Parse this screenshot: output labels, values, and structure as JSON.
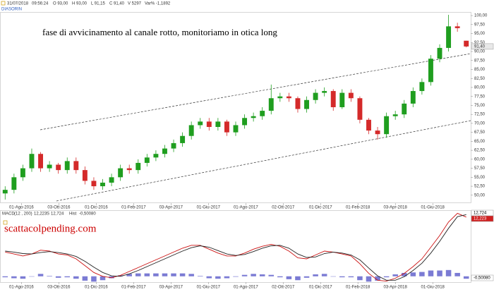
{
  "header": {
    "date": "31/07/2018",
    "time": "09:56:24",
    "open": "O 93,00",
    "high": "H 93,00",
    "low": "L 91,15",
    "close": "C 91,40",
    "volume": "V 5297",
    "change": "Var% -1,1892",
    "symbol": "DIASORIN"
  },
  "annotation": "fase di avvicinamento al canale rotto, monitoriamo in otica long",
  "watermark": "scattacolpending.com",
  "chart_data": [
    {
      "type": "candlestick",
      "up_color": "#1f9e1f",
      "down_color": "#d42a2a",
      "last_label": "91,40",
      "ylim": [
        47.8,
        100.8
      ],
      "yticks": [
        {
          "value": 50,
          "label": "50,00"
        },
        {
          "value": 52.5,
          "label": "52,50"
        },
        {
          "value": 55,
          "label": "55,00"
        },
        {
          "value": 57.5,
          "label": "57,50"
        },
        {
          "value": 60,
          "label": "60,00"
        },
        {
          "value": 62.5,
          "label": "62,50"
        },
        {
          "value": 65,
          "label": "65,00"
        },
        {
          "value": 67.5,
          "label": "67,50"
        },
        {
          "value": 70,
          "label": "70,00"
        },
        {
          "value": 72.5,
          "label": "72,50"
        },
        {
          "value": 75,
          "label": "75,00"
        },
        {
          "value": 77.5,
          "label": "77,50"
        },
        {
          "value": 80,
          "label": "80,00"
        },
        {
          "value": 82.5,
          "label": "82,50"
        },
        {
          "value": 85,
          "label": "85,00"
        },
        {
          "value": 87.5,
          "label": "87,50"
        },
        {
          "value": 90,
          "label": "90,00"
        },
        {
          "value": 92.5,
          "label": "92,50"
        },
        {
          "value": 95,
          "label": "95,00"
        },
        {
          "value": 97.5,
          "label": "97,50"
        },
        {
          "value": 100,
          "label": "100,00"
        }
      ],
      "xlim": [
        -0.5,
        52.5
      ],
      "xticks": [
        {
          "value": 1.84,
          "label": "01-Ago-2016"
        },
        {
          "value": 6.06,
          "label": "03-Ott-2016"
        },
        {
          "value": 10.27,
          "label": "01-Dic-2016"
        },
        {
          "value": 14.49,
          "label": "01-Feb-2017"
        },
        {
          "value": 18.7,
          "label": "03-Apr-2017"
        },
        {
          "value": 22.92,
          "label": "01-Giu-2017"
        },
        {
          "value": 27.14,
          "label": "01-Ago-2017"
        },
        {
          "value": 31.35,
          "label": "02-Ott-2017"
        },
        {
          "value": 35.57,
          "label": "01-Dic-2017"
        },
        {
          "value": 39.78,
          "label": "01-Feb-2018"
        },
        {
          "value": 44.0,
          "label": "03-Apr-2018"
        },
        {
          "value": 48.22,
          "label": "01-Giu-2018"
        }
      ],
      "open": [
        50.5,
        51.5,
        55,
        57.5,
        61.5,
        57.5,
        58.5,
        57,
        59.5,
        57,
        54,
        52.5,
        53.5,
        55,
        57.5,
        57,
        59,
        60.5,
        61.5,
        63,
        64.5,
        66.5,
        69.5,
        70.5,
        69,
        70.5,
        67.5,
        69.5,
        71.5,
        72,
        73.5,
        77,
        77.5,
        77,
        74,
        76.5,
        78.5,
        79,
        74.5,
        78.5,
        77,
        71,
        68,
        67,
        72,
        72.5,
        75.5,
        79,
        81.5,
        88,
        91,
        97,
        93
      ],
      "high": [
        52.5,
        56,
        58.5,
        63,
        62,
        59.5,
        59,
        60.5,
        60.5,
        58,
        55,
        54.5,
        56,
        58.5,
        58.5,
        60,
        61.5,
        62.5,
        64,
        65.5,
        67.5,
        70.5,
        71.5,
        71.5,
        71.5,
        71,
        70.5,
        72.5,
        73,
        74.5,
        80.8,
        78.5,
        78.5,
        77.5,
        77.5,
        79.5,
        80,
        79.5,
        79.5,
        79.5,
        77.5,
        71.5,
        69,
        73,
        73.5,
        76.5,
        80,
        82.5,
        89,
        92,
        100.2,
        98,
        93
      ],
      "low": [
        48.8,
        50.5,
        54,
        56.5,
        56.5,
        56.5,
        56,
        56,
        56,
        53,
        51.5,
        51.5,
        52.5,
        54,
        56,
        56,
        58,
        59.5,
        60.5,
        62,
        63.5,
        65.5,
        68.5,
        68,
        68,
        66.5,
        66.5,
        68.5,
        70.5,
        71,
        72.5,
        76,
        76,
        73,
        73,
        75.5,
        77.5,
        73.5,
        74,
        76,
        70,
        67,
        65.5,
        66,
        71,
        71.5,
        74.5,
        78,
        80.5,
        87,
        90,
        95.5,
        91.15
      ],
      "close": [
        51.5,
        55,
        57.5,
        61.5,
        57.5,
        58.5,
        57,
        59.5,
        57,
        54,
        52.5,
        53.5,
        55,
        57.5,
        57,
        59,
        60.5,
        61.5,
        63,
        64.5,
        66.5,
        69.5,
        70.5,
        69,
        70.5,
        67.5,
        69.5,
        71.5,
        72,
        73.5,
        77,
        77.5,
        77,
        74,
        76.5,
        78.5,
        79,
        74.5,
        78.5,
        77,
        71,
        68,
        67,
        72,
        72.5,
        75.5,
        79,
        81.5,
        88,
        91,
        97,
        96.5,
        91.4
      ]
    },
    {
      "type": "line",
      "title": "MACD",
      "params": "(12 , 200)",
      "signal_prefix": "S",
      "hist_prefix": "Hist",
      "ylim": [
        -1.2,
        13.5
      ],
      "xlim": [
        -0.5,
        52.5
      ],
      "series": [
        {
          "color": "#cc1111",
          "label": "12,223",
          "values": [
            5.0,
            4.6,
            4.2,
            4.6,
            5.4,
            5.2,
            4.6,
            4.4,
            3.6,
            2.2,
            0.8,
            0.0,
            -0.3,
            0.2,
            1.0,
            1.8,
            2.6,
            3.4,
            4.2,
            5.0,
            5.8,
            6.4,
            6.4,
            5.6,
            4.8,
            4.2,
            4.2,
            4.8,
            5.6,
            6.2,
            6.6,
            6.2,
            5.2,
            3.8,
            3.6,
            4.4,
            5.2,
            5.0,
            4.6,
            4.2,
            2.6,
            0.6,
            -0.8,
            -1.0,
            -0.4,
            0.6,
            2.0,
            3.6,
            6.0,
            8.4,
            11.2,
            13.0,
            12.223
          ]
        },
        {
          "color": "#222222",
          "label": "12,724",
          "values": [
            5.2,
            5.0,
            4.7,
            4.6,
            4.9,
            5.1,
            4.9,
            4.6,
            4.1,
            3.1,
            1.9,
            0.8,
            0.1,
            0.0,
            0.5,
            1.2,
            2.0,
            2.8,
            3.6,
            4.4,
            5.2,
            5.9,
            6.3,
            6.0,
            5.3,
            4.6,
            4.3,
            4.5,
            5.1,
            5.8,
            6.3,
            6.4,
            5.8,
            4.6,
            3.9,
            4.0,
            4.7,
            5.0,
            4.8,
            4.4,
            3.4,
            1.7,
            0.1,
            -0.8,
            -0.8,
            -0.1,
            1.2,
            2.7,
            4.8,
            7.2,
            9.9,
            12.3,
            12.724
          ]
        }
      ],
      "histogram": {
        "color": "#7b7bd4",
        "label": "-0,50080",
        "values": [
          -0.2,
          -0.4,
          -0.5,
          0,
          0.5,
          0.1,
          -0.3,
          -0.2,
          -0.5,
          -0.9,
          -1.1,
          -0.8,
          -0.4,
          0.2,
          0.5,
          0.6,
          0.6,
          0.6,
          0.6,
          0.6,
          0.6,
          0.5,
          0.1,
          -0.4,
          -0.5,
          -0.4,
          -0.1,
          0.3,
          0.5,
          0.4,
          0.3,
          -0.2,
          -0.6,
          -0.8,
          -0.3,
          0.4,
          0.5,
          0,
          -0.2,
          -0.2,
          -0.8,
          -1.1,
          -0.9,
          -0.2,
          0.4,
          0.7,
          0.8,
          0.9,
          1.2,
          1.2,
          1.3,
          0.7,
          -0.5008
        ]
      }
    }
  ]
}
